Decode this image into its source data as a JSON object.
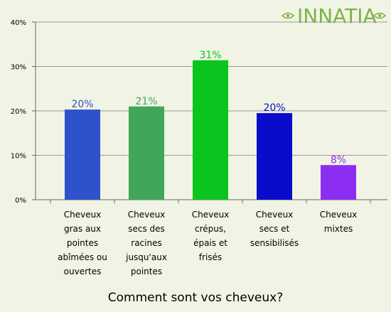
{
  "logo": {
    "text": "INNATIA",
    "color": "#7BB34A"
  },
  "chart_data": {
    "type": "bar",
    "title": "Comment sont vos cheveux?",
    "ylim": [
      0,
      40
    ],
    "y_ticks": [
      "0%",
      "10%",
      "20%",
      "30%",
      "40%"
    ],
    "grid": true,
    "categories": [
      "Cheveux gras aux pointes abîmées ou ouvertes",
      "Cheveux secs des racines jusqu'aux pointes",
      "Cheveux crépus, épais et frisés",
      "Cheveux secs et sensibilisés",
      "Cheveux mixtes"
    ],
    "category_lines": [
      [
        "Cheveux",
        "gras aux",
        "pointes",
        "abîmées ou",
        "ouvertes"
      ],
      [
        "Cheveux",
        "secs des",
        "racines",
        "jusqu'aux",
        "pointes"
      ],
      [
        "Cheveux",
        "crépus,",
        "épais et",
        "frisés"
      ],
      [
        "Cheveux",
        "secs et",
        "sensibilisés"
      ],
      [
        "Cheveux",
        "mixtes"
      ]
    ],
    "values": [
      20.3,
      21,
      31.4,
      19.5,
      7.8
    ],
    "value_labels": [
      "20%",
      "21%",
      "31%",
      "20%",
      "8%"
    ],
    "colors": [
      "#2E52C9",
      "#41A65A",
      "#0CC41E",
      "#0A0CCB",
      "#8C2DF2"
    ]
  }
}
